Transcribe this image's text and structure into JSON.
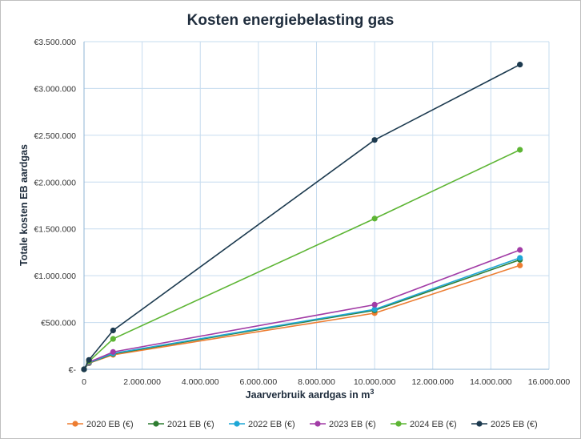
{
  "chart_data": {
    "type": "line",
    "title": "Kosten energiebelasting gas",
    "xlabel": "Jaarverbruik aardgas in m",
    "xlabel_sup": "3",
    "ylabel": "Totale kosten  EB  aardgas",
    "xlim": [
      0,
      16000000
    ],
    "ylim": [
      0,
      3500000
    ],
    "x_ticks": [
      0,
      2000000,
      4000000,
      6000000,
      8000000,
      10000000,
      12000000,
      14000000,
      16000000
    ],
    "x_tick_labels": [
      "0",
      "2.000.000",
      "4.000.000",
      "6.000.000",
      "8.000.000",
      "10.000.000",
      "12.000.000",
      "14.000.000",
      "16.000.000"
    ],
    "y_ticks": [
      0,
      500000,
      1000000,
      1500000,
      2000000,
      2500000,
      3000000,
      3500000
    ],
    "y_tick_labels": [
      "€-",
      "€500.000",
      "€1.000.000",
      "€1.500.000",
      "€2.000.000",
      "€2.500.000",
      "€3.000.000",
      "€3.500.000"
    ],
    "grid": true,
    "legend_position": "bottom",
    "x": [
      0,
      170000,
      1000000,
      10000000,
      15000000
    ],
    "series": [
      {
        "name": "2020 EB (€)",
        "color": "#ed7d31",
        "values": [
          0,
          65000,
          155000,
          600000,
          1110000
        ]
      },
      {
        "name": "2021 EB (€)",
        "color": "#2e7d32",
        "values": [
          0,
          68000,
          165000,
          630000,
          1170000
        ]
      },
      {
        "name": "2022 EB (€)",
        "color": "#1ea7d6",
        "values": [
          0,
          70000,
          170000,
          640000,
          1190000
        ]
      },
      {
        "name": "2023 EB (€)",
        "color": "#a23ca6",
        "values": [
          0,
          75000,
          185000,
          690000,
          1275000
        ]
      },
      {
        "name": "2024 EB (€)",
        "color": "#5db534",
        "values": [
          0,
          85000,
          325000,
          1610000,
          2345000
        ]
      },
      {
        "name": "2025 EB (€)",
        "color": "#1c3a4f",
        "values": [
          0,
          100000,
          415000,
          2450000,
          3255000
        ]
      }
    ]
  }
}
